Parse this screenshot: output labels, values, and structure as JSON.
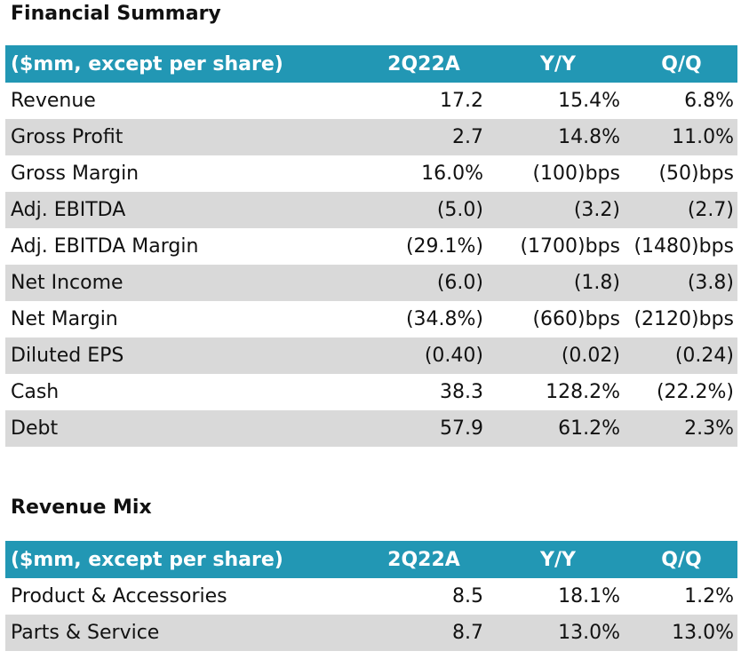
{
  "financial_summary": {
    "title": "Financial Summary",
    "headers": [
      "($mm, except per share)",
      "2Q22A",
      "Y/Y",
      "Q/Q"
    ],
    "rows": [
      [
        "Revenue",
        "17.2",
        "15.4%",
        "6.8%"
      ],
      [
        "Gross Profit",
        "2.7",
        "14.8%",
        "11.0%"
      ],
      [
        "Gross Margin",
        "16.0%",
        "(100)bps",
        "(50)bps"
      ],
      [
        "Adj. EBITDA",
        "(5.0)",
        "(3.2)",
        "(2.7)"
      ],
      [
        "Adj. EBITDA Margin",
        "(29.1%)",
        "(1700)bps",
        "(1480)bps"
      ],
      [
        "Net Income",
        "(6.0)",
        "(1.8)",
        "(3.8)"
      ],
      [
        "Net Margin",
        "(34.8%)",
        "(660)bps",
        "(2120)bps"
      ],
      [
        "Diluted EPS",
        "(0.40)",
        "(0.02)",
        "(0.24)"
      ],
      [
        "Cash",
        "38.3",
        "128.2%",
        "(22.2%)"
      ],
      [
        "Debt",
        "57.9",
        "61.2%",
        "2.3%"
      ]
    ]
  },
  "revenue_mix": {
    "title": "Revenue Mix",
    "headers": [
      "($mm, except per share)",
      "2Q22A",
      "Y/Y",
      "Q/Q"
    ],
    "rows": [
      [
        "Product & Accessories",
        "8.5",
        "18.1%",
        "1.2%"
      ],
      [
        "Parts & Service",
        "8.7",
        "13.0%",
        "13.0%"
      ]
    ]
  },
  "colors": {
    "header_bg": "#2297b4",
    "header_text": "#ffffff",
    "stripe_bg": "#d9d9d9"
  }
}
